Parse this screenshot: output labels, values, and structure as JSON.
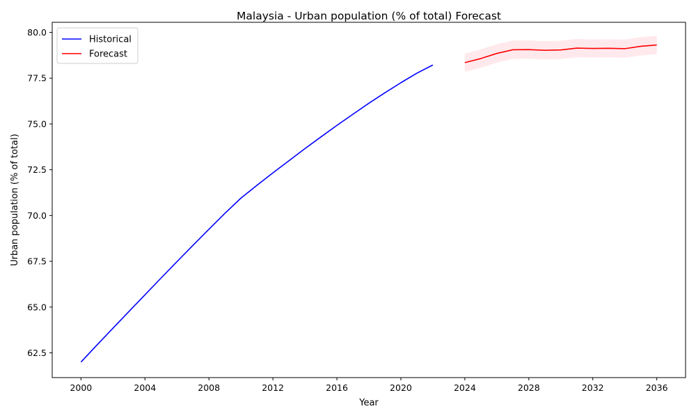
{
  "chart_data": {
    "type": "line",
    "title": "Malaysia - Urban population (% of total) Forecast",
    "xlabel": "Year",
    "ylabel": "Urban population (% of total)",
    "xlim": [
      1998.2,
      2037.8
    ],
    "ylim": [
      61.15,
      80.55
    ],
    "x_ticks": [
      2000,
      2004,
      2008,
      2012,
      2016,
      2020,
      2024,
      2028,
      2032,
      2036
    ],
    "y_ticks": [
      62.5,
      65.0,
      67.5,
      70.0,
      72.5,
      75.0,
      77.5,
      80.0
    ],
    "y_tick_labels": [
      "62.5",
      "65.0",
      "67.5",
      "70.0",
      "72.5",
      "75.0",
      "77.5",
      "80.0"
    ],
    "grid": false,
    "legend_position": "upper left",
    "series": [
      {
        "name": "Historical",
        "color": "#0000ff",
        "x": [
          2000,
          2001,
          2002,
          2003,
          2004,
          2005,
          2006,
          2007,
          2008,
          2009,
          2010,
          2011,
          2012,
          2013,
          2014,
          2015,
          2016,
          2017,
          2018,
          2019,
          2020,
          2021,
          2022
        ],
        "y": [
          62.0,
          62.93,
          63.85,
          64.76,
          65.67,
          66.58,
          67.48,
          68.37,
          69.25,
          70.12,
          70.95,
          71.65,
          72.33,
          72.99,
          73.65,
          74.29,
          74.92,
          75.53,
          76.13,
          76.7,
          77.25,
          77.77,
          78.22
        ]
      },
      {
        "name": "Forecast",
        "color": "#ff0000",
        "band_color": "#ffc0cb",
        "x": [
          2024,
          2025,
          2026,
          2027,
          2028,
          2029,
          2030,
          2031,
          2032,
          2033,
          2034,
          2035,
          2036
        ],
        "y": [
          78.35,
          78.57,
          78.85,
          79.05,
          79.06,
          79.02,
          79.04,
          79.14,
          79.12,
          79.13,
          79.11,
          79.24,
          79.31
        ],
        "lower": [
          77.85,
          78.07,
          78.35,
          78.55,
          78.56,
          78.52,
          78.54,
          78.64,
          78.62,
          78.63,
          78.61,
          78.74,
          78.81
        ],
        "upper": [
          78.85,
          79.07,
          79.35,
          79.55,
          79.56,
          79.52,
          79.54,
          79.64,
          79.62,
          79.63,
          79.61,
          79.74,
          79.81
        ]
      }
    ]
  }
}
